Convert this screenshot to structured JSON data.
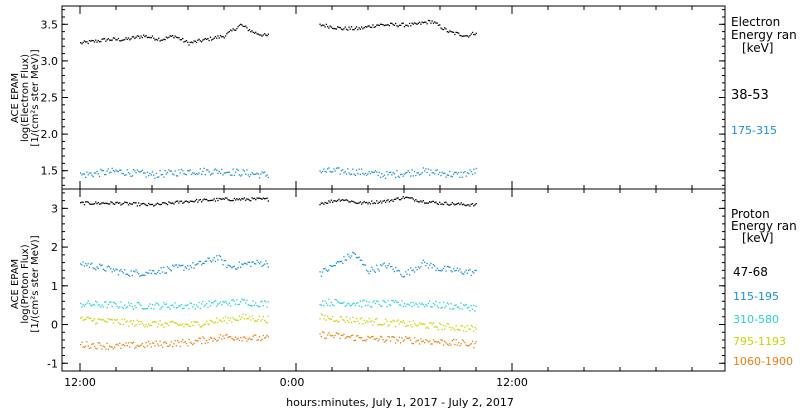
{
  "figure": {
    "xlabel": "hours:minutes, July  1, 2017 - July  2, 2017",
    "x_ticks": [
      "12:00",
      "0:00",
      "12:00"
    ]
  },
  "chart_data": [
    {
      "type": "scatter",
      "panel": "electron",
      "ylabel_lines": [
        "ACE EPAM",
        "log(Electron Flux)",
        "[1/(cm²s ster MeV)]"
      ],
      "legend_title_lines": [
        "Electron",
        "Energy ran",
        "[keV]"
      ],
      "xlim_hours": [
        0,
        36
      ],
      "ylim": [
        1.25,
        3.75
      ],
      "y_ticks": [
        1.5,
        2.0,
        2.5,
        3.0,
        3.5
      ],
      "data_gap_hours": [
        10.5,
        13.3
      ],
      "series": [
        {
          "name": "38-53",
          "color": "#000000",
          "x_hours": [
            0,
            1.5,
            2.5,
            3.5,
            4.5,
            5.2,
            6.0,
            7.0,
            8.0,
            8.9,
            9.6,
            10.3,
            13.4,
            14.5,
            15.5,
            16.5,
            17.5,
            18.5,
            19.5,
            20.5,
            21.5,
            22.0
          ],
          "values": [
            3.25,
            3.3,
            3.3,
            3.35,
            3.3,
            3.35,
            3.25,
            3.3,
            3.35,
            3.5,
            3.4,
            3.35,
            3.5,
            3.45,
            3.45,
            3.5,
            3.5,
            3.5,
            3.55,
            3.4,
            3.35,
            3.4
          ]
        },
        {
          "name": "175-315",
          "color": "#1a8fd6",
          "x_hours": [
            0,
            2,
            4,
            6,
            8,
            10.3,
            13.4,
            15,
            17,
            19,
            21,
            22.0
          ],
          "values": [
            1.45,
            1.5,
            1.45,
            1.5,
            1.5,
            1.45,
            1.5,
            1.5,
            1.45,
            1.5,
            1.45,
            1.5
          ]
        }
      ]
    },
    {
      "type": "scatter",
      "panel": "proton",
      "ylabel_lines": [
        "ACE EPAM",
        "log(Proton Flux)",
        "[1/(cm²s ster MeV)]"
      ],
      "legend_title_lines": [
        "Proton",
        "Energy ran",
        "[keV]"
      ],
      "xlim_hours": [
        0,
        36
      ],
      "ylim": [
        -1.2,
        3.5
      ],
      "y_ticks": [
        -1,
        0,
        1,
        2,
        3
      ],
      "data_gap_hours": [
        10.5,
        13.3
      ],
      "series": [
        {
          "name": "47-68",
          "color": "#000000",
          "x_hours": [
            0,
            2,
            4,
            6,
            8,
            10.3,
            13.4,
            14.5,
            15.5,
            17,
            18,
            19,
            20,
            22.0
          ],
          "values": [
            3.15,
            3.15,
            3.1,
            3.2,
            3.25,
            3.25,
            3.15,
            3.25,
            3.15,
            3.2,
            3.3,
            3.2,
            3.15,
            3.1
          ]
        },
        {
          "name": "115-195",
          "color": "#1a8fd6",
          "x_hours": [
            0,
            1.5,
            2.5,
            3.5,
            5,
            6.5,
            7.6,
            8.3,
            9.5,
            10.3,
            13.4,
            14.3,
            15.2,
            16.0,
            17,
            18,
            19.0,
            20,
            21,
            22.0
          ],
          "values": [
            1.6,
            1.45,
            1.35,
            1.35,
            1.45,
            1.55,
            1.75,
            1.5,
            1.6,
            1.6,
            1.35,
            1.6,
            1.85,
            1.4,
            1.55,
            1.3,
            1.6,
            1.45,
            1.4,
            1.35
          ]
        },
        {
          "name": "310-580",
          "color": "#22d3d3",
          "x_hours": [
            0,
            3,
            6,
            9,
            10.3,
            13.4,
            16,
            19,
            22.0
          ],
          "values": [
            0.55,
            0.5,
            0.5,
            0.6,
            0.55,
            0.6,
            0.55,
            0.55,
            0.45
          ]
        },
        {
          "name": "795-1193",
          "color": "#c8d400",
          "x_hours": [
            0,
            3,
            6,
            9,
            10.3,
            13.4,
            16,
            19,
            22.0
          ],
          "values": [
            0.15,
            0.05,
            0.0,
            0.2,
            0.15,
            0.2,
            0.1,
            0.0,
            -0.1
          ]
        },
        {
          "name": "1060-1900",
          "color": "#ee7d0e",
          "x_hours": [
            0,
            2,
            4,
            6,
            8,
            10.3,
            13.4,
            16,
            19,
            22.0
          ],
          "values": [
            -0.5,
            -0.55,
            -0.5,
            -0.45,
            -0.3,
            -0.35,
            -0.25,
            -0.35,
            -0.4,
            -0.5
          ]
        }
      ]
    }
  ]
}
